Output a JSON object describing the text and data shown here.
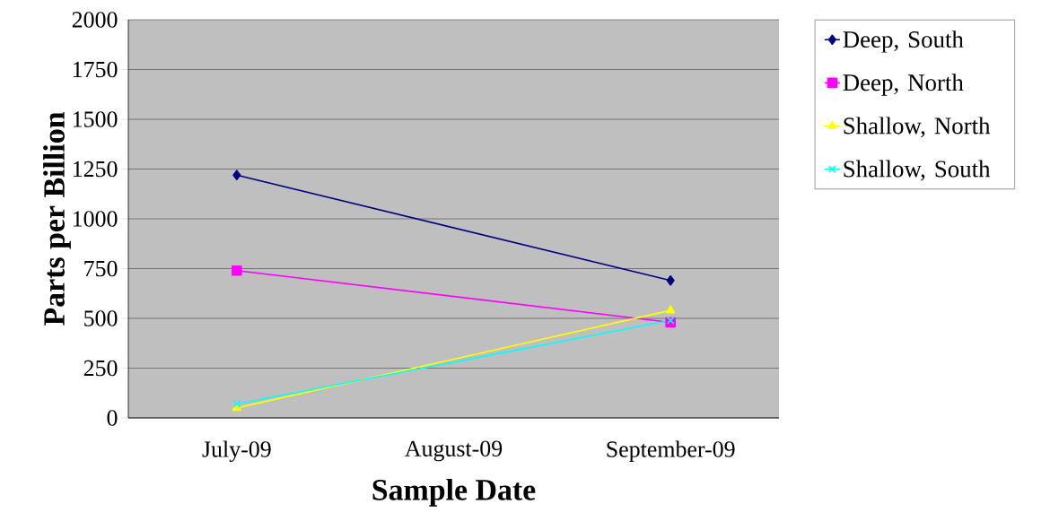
{
  "chart_data": {
    "type": "line",
    "xlabel": "Sample Date",
    "ylabel": "Parts per Billion",
    "categories": [
      "July-09",
      "August-09",
      "September-09"
    ],
    "series": [
      {
        "name": "Deep, South",
        "color": "#000080",
        "marker": "diamond",
        "values": [
          1220,
          null,
          690
        ]
      },
      {
        "name": "Deep, North",
        "color": "#ff00ff",
        "marker": "square",
        "values": [
          740,
          null,
          480
        ]
      },
      {
        "name": "Shallow, North",
        "color": "#ffff00",
        "marker": "triangle",
        "values": [
          50,
          null,
          540
        ]
      },
      {
        "name": "Shallow, South",
        "color": "#00ffff",
        "marker": "cross",
        "values": [
          70,
          null,
          490
        ]
      }
    ],
    "ylim": [
      0,
      2000
    ],
    "yticks": [
      0,
      250,
      500,
      750,
      1000,
      1250,
      1500,
      1750,
      2000
    ],
    "grid": "y",
    "legend": "right"
  }
}
